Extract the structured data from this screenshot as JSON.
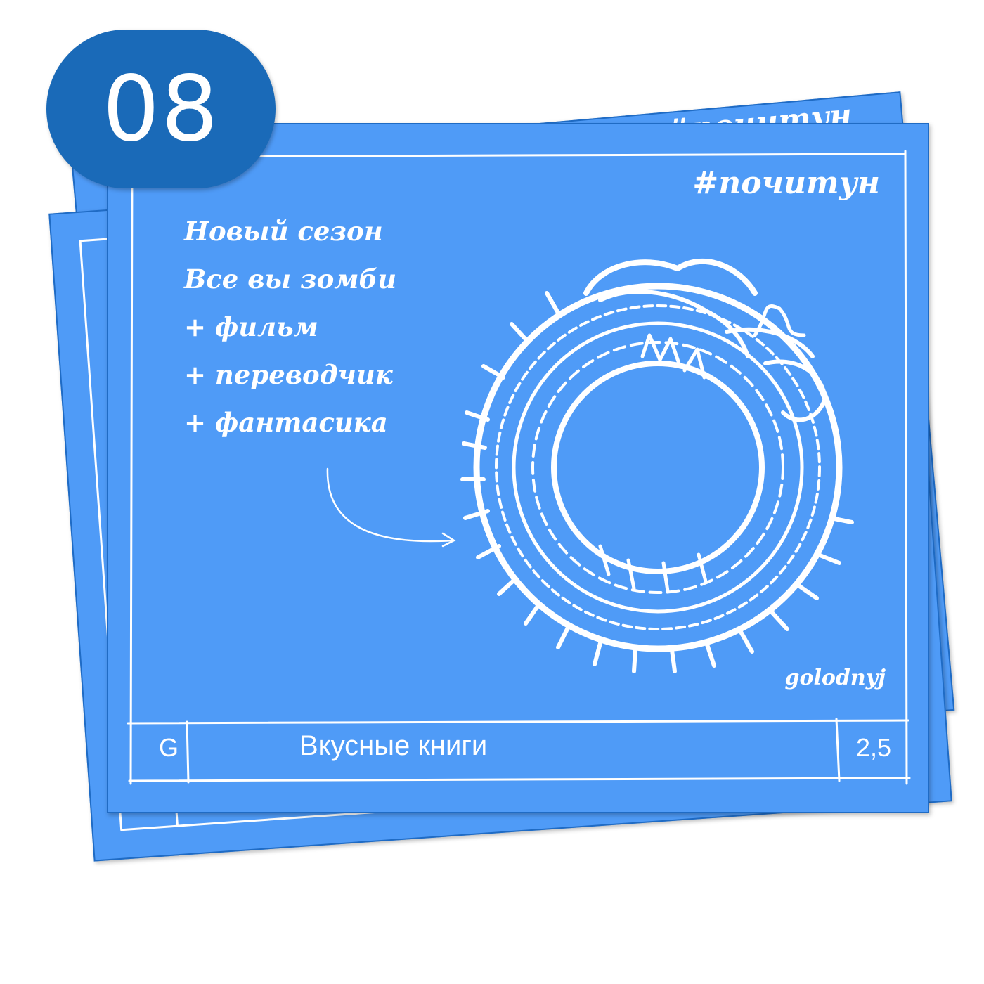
{
  "badge": {
    "number": "08"
  },
  "card": {
    "hashtag": "#почитун",
    "notes": [
      "Новый сезон",
      "Все вы зомби",
      "+ фильм",
      "+ переводчик",
      "+ фантасика"
    ],
    "author": "golodnyj",
    "footer": {
      "letter": "G",
      "title": "Вкусные книги",
      "price": "2,5"
    }
  },
  "colors": {
    "card": "#4f9bf7",
    "card_border": "#1f6bc4",
    "badge": "#1a6ab8",
    "ink": "#ffffff"
  },
  "icons": {
    "illustration": "ouroboros-serpent-icon",
    "arrow": "curved-arrow-icon"
  }
}
